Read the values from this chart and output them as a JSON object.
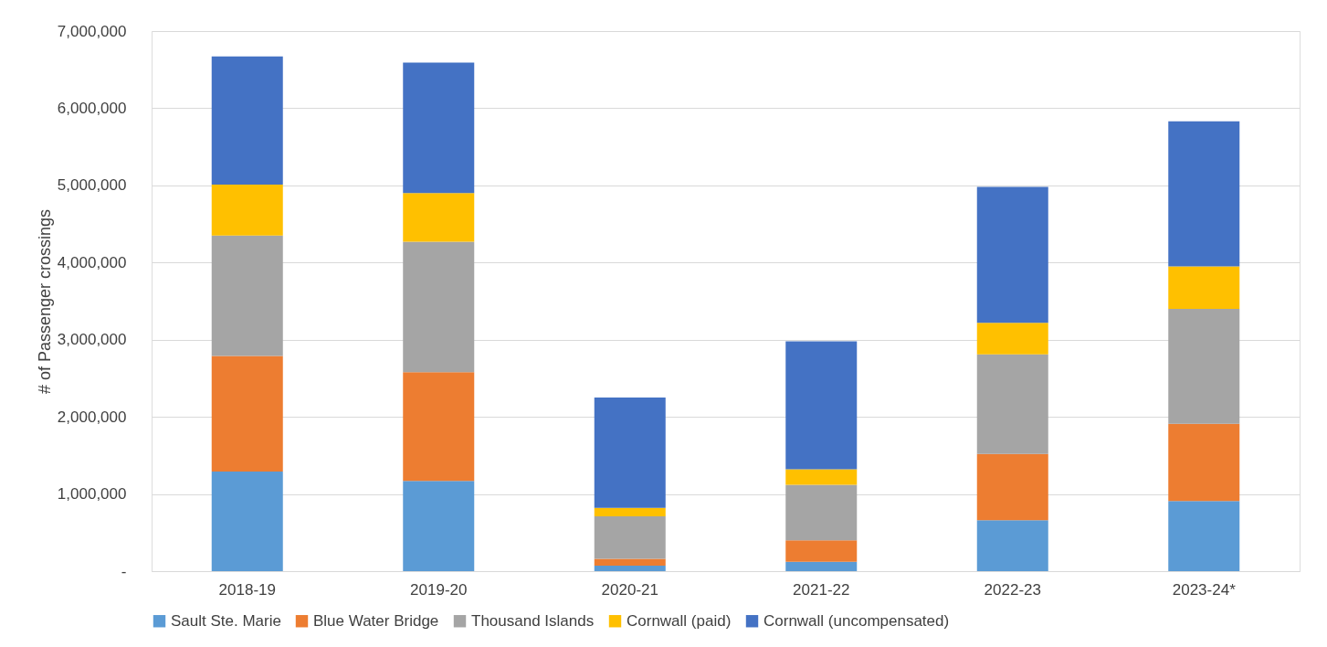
{
  "chart_data": {
    "type": "bar",
    "stacked": true,
    "ylabel": "# of Passenger crossings",
    "categories": [
      "2018-19",
      "2019-20",
      "2020-21",
      "2021-22",
      "2022-23",
      "2023-24*"
    ],
    "series": [
      {
        "name": "Sault Ste. Marie",
        "color": "#5b9bd5",
        "values": [
          1290000,
          1170000,
          70000,
          120000,
          660000,
          910000
        ]
      },
      {
        "name": "Blue Water Bridge",
        "color": "#ed7d31",
        "values": [
          1500000,
          1410000,
          90000,
          280000,
          860000,
          1000000
        ]
      },
      {
        "name": "Thousand Islands",
        "color": "#a5a5a5",
        "values": [
          1560000,
          1690000,
          550000,
          720000,
          1290000,
          1490000
        ]
      },
      {
        "name": "Cornwall (paid)",
        "color": "#ffc000",
        "values": [
          660000,
          630000,
          110000,
          200000,
          410000,
          550000
        ]
      },
      {
        "name": "Cornwall (uncompensated)",
        "color": "#4472c4",
        "values": [
          1660000,
          1690000,
          1430000,
          1660000,
          1760000,
          1880000
        ]
      }
    ],
    "ylim": [
      0,
      7000000
    ],
    "yticks": [
      {
        "value": 0,
        "label": "-"
      },
      {
        "value": 1000000,
        "label": "1,000,000"
      },
      {
        "value": 2000000,
        "label": "2,000,000"
      },
      {
        "value": 3000000,
        "label": "3,000,000"
      },
      {
        "value": 4000000,
        "label": "4,000,000"
      },
      {
        "value": 5000000,
        "label": "5,000,000"
      },
      {
        "value": 6000000,
        "label": "6,000,000"
      },
      {
        "value": 7000000,
        "label": "7,000,000"
      }
    ],
    "grid": "y",
    "legend": "bottom"
  }
}
